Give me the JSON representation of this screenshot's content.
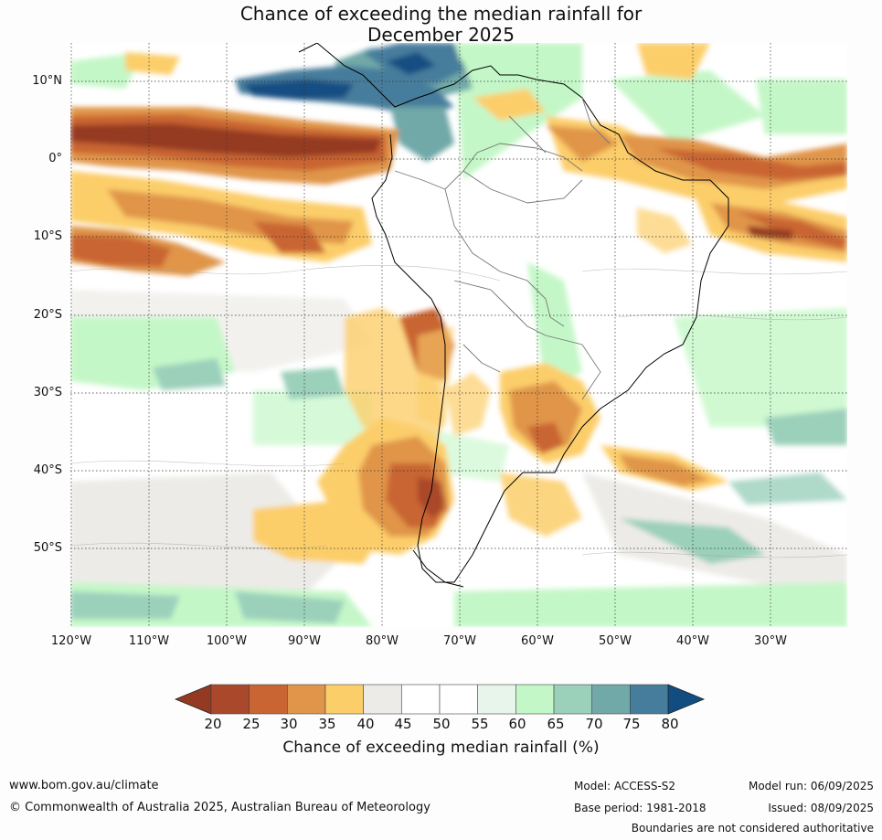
{
  "title": {
    "line1": "Chance of exceeding the median rainfall for",
    "line2": "December 2025"
  },
  "map": {
    "lat_labels": [
      "10°N",
      "0°",
      "10°S",
      "20°S",
      "30°S",
      "40°S",
      "50°S"
    ],
    "lon_labels": [
      "120°W",
      "110°W",
      "100°W",
      "90°W",
      "80°W",
      "70°W",
      "60°W",
      "50°W",
      "40°W",
      "30°W"
    ]
  },
  "colorbar": {
    "ticks": [
      "20",
      "25",
      "30",
      "35",
      "40",
      "45",
      "50",
      "55",
      "60",
      "65",
      "70",
      "75",
      "80"
    ],
    "colors": [
      "#a9482a",
      "#c96533",
      "#e0954a",
      "#fcce6a",
      "#edebe7",
      "#ffffff",
      "#ffffff",
      "#e8f5ea",
      "#c4f7c7",
      "#9bd0bb",
      "#71a8a8",
      "#477d9c"
    ],
    "under_color": "#953a22",
    "over_color": "#124d82",
    "label": "Chance of exceeding median rainfall (%)"
  },
  "footer": {
    "website": "www.bom.gov.au/climate",
    "copyright": "© Commonwealth of Australia 2025, Australian Bureau of Meteorology",
    "model": "Model: ACCESS-S2",
    "base_period": "Base period: 1981-2018",
    "model_run": "Model run: 06/09/2025",
    "issued": "Issued: 08/09/2025",
    "disclaimer": "Boundaries are not considered authoritative"
  }
}
